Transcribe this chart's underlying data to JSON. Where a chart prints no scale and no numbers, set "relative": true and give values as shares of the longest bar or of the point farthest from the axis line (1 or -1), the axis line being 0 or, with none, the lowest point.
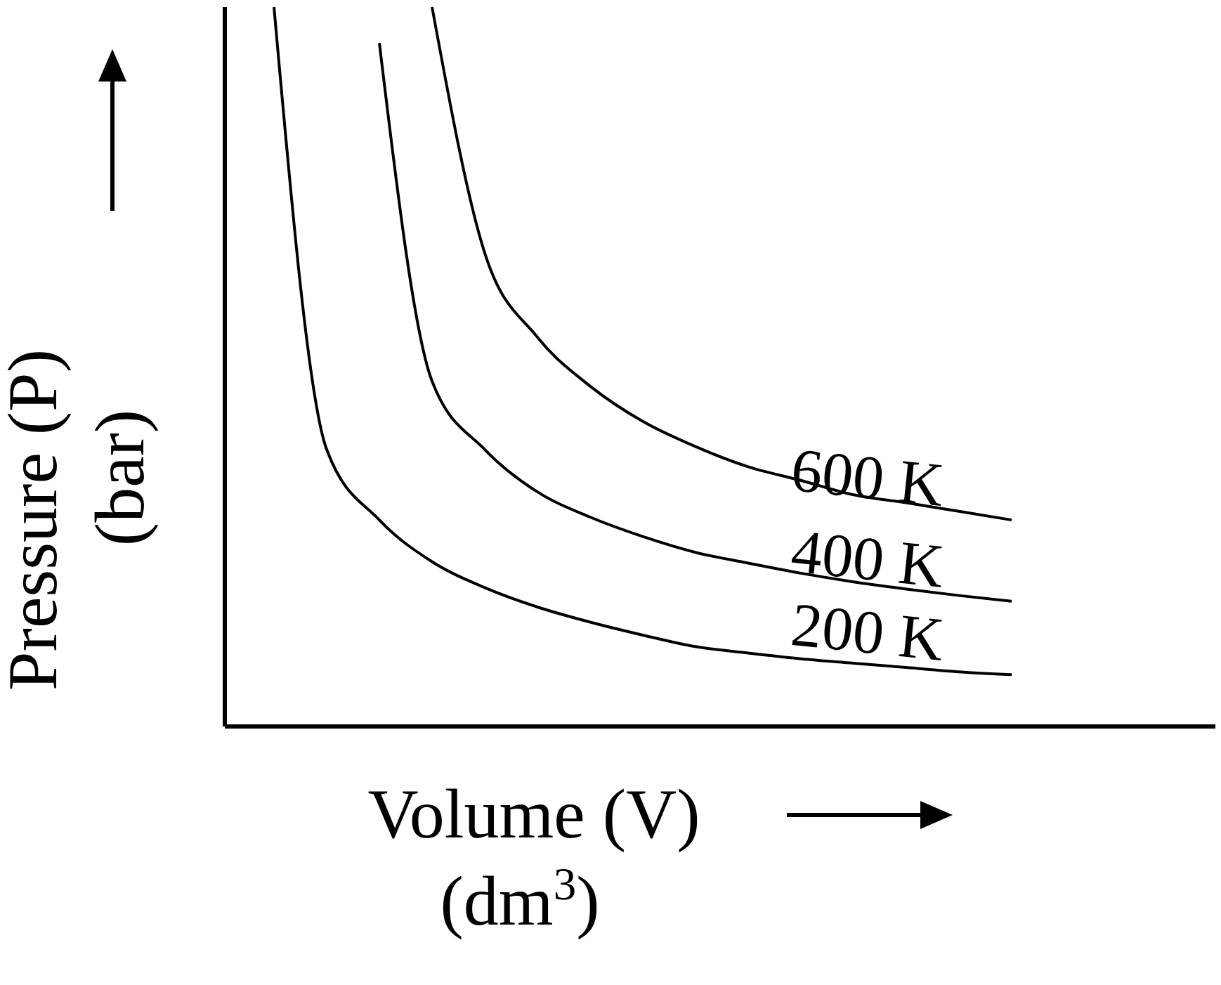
{
  "chart_data": {
    "type": "line",
    "relative": true,
    "xlabel": "Volume (V)\n(dm$^{3}$)",
    "ylabel": "Pressure (P)\n(bar)",
    "categories": [
      null,
      null,
      null,
      null,
      null,
      null,
      null,
      null,
      null,
      null,
      null,
      null,
      null,
      null,
      null
    ],
    "marker": "none",
    "line_style": "solid",
    "series": [
      {
        "name": "200 K",
        "color": "#000000",
        "values": [
          1.0,
          0.385,
          0.287,
          0.229,
          0.193,
          0.166,
          0.145,
          0.127,
          0.111,
          0.102,
          0.094,
          0.088,
          0.082,
          0.076,
          0.072
        ]
      },
      {
        "name": "400 K",
        "color": "#000000",
        "values": [
          null,
          null,
          0.95,
          0.48,
          0.385,
          0.326,
          0.291,
          0.264,
          0.242,
          0.227,
          0.213,
          0.201,
          0.191,
          0.182,
          0.174
        ]
      },
      {
        "name": "600 K",
        "color": "#000000",
        "values": [
          null,
          null,
          null,
          1.0,
          0.658,
          0.541,
          0.473,
          0.424,
          0.389,
          0.361,
          0.342,
          0.322,
          0.311,
          0.299,
          0.287
        ]
      }
    ]
  }
}
